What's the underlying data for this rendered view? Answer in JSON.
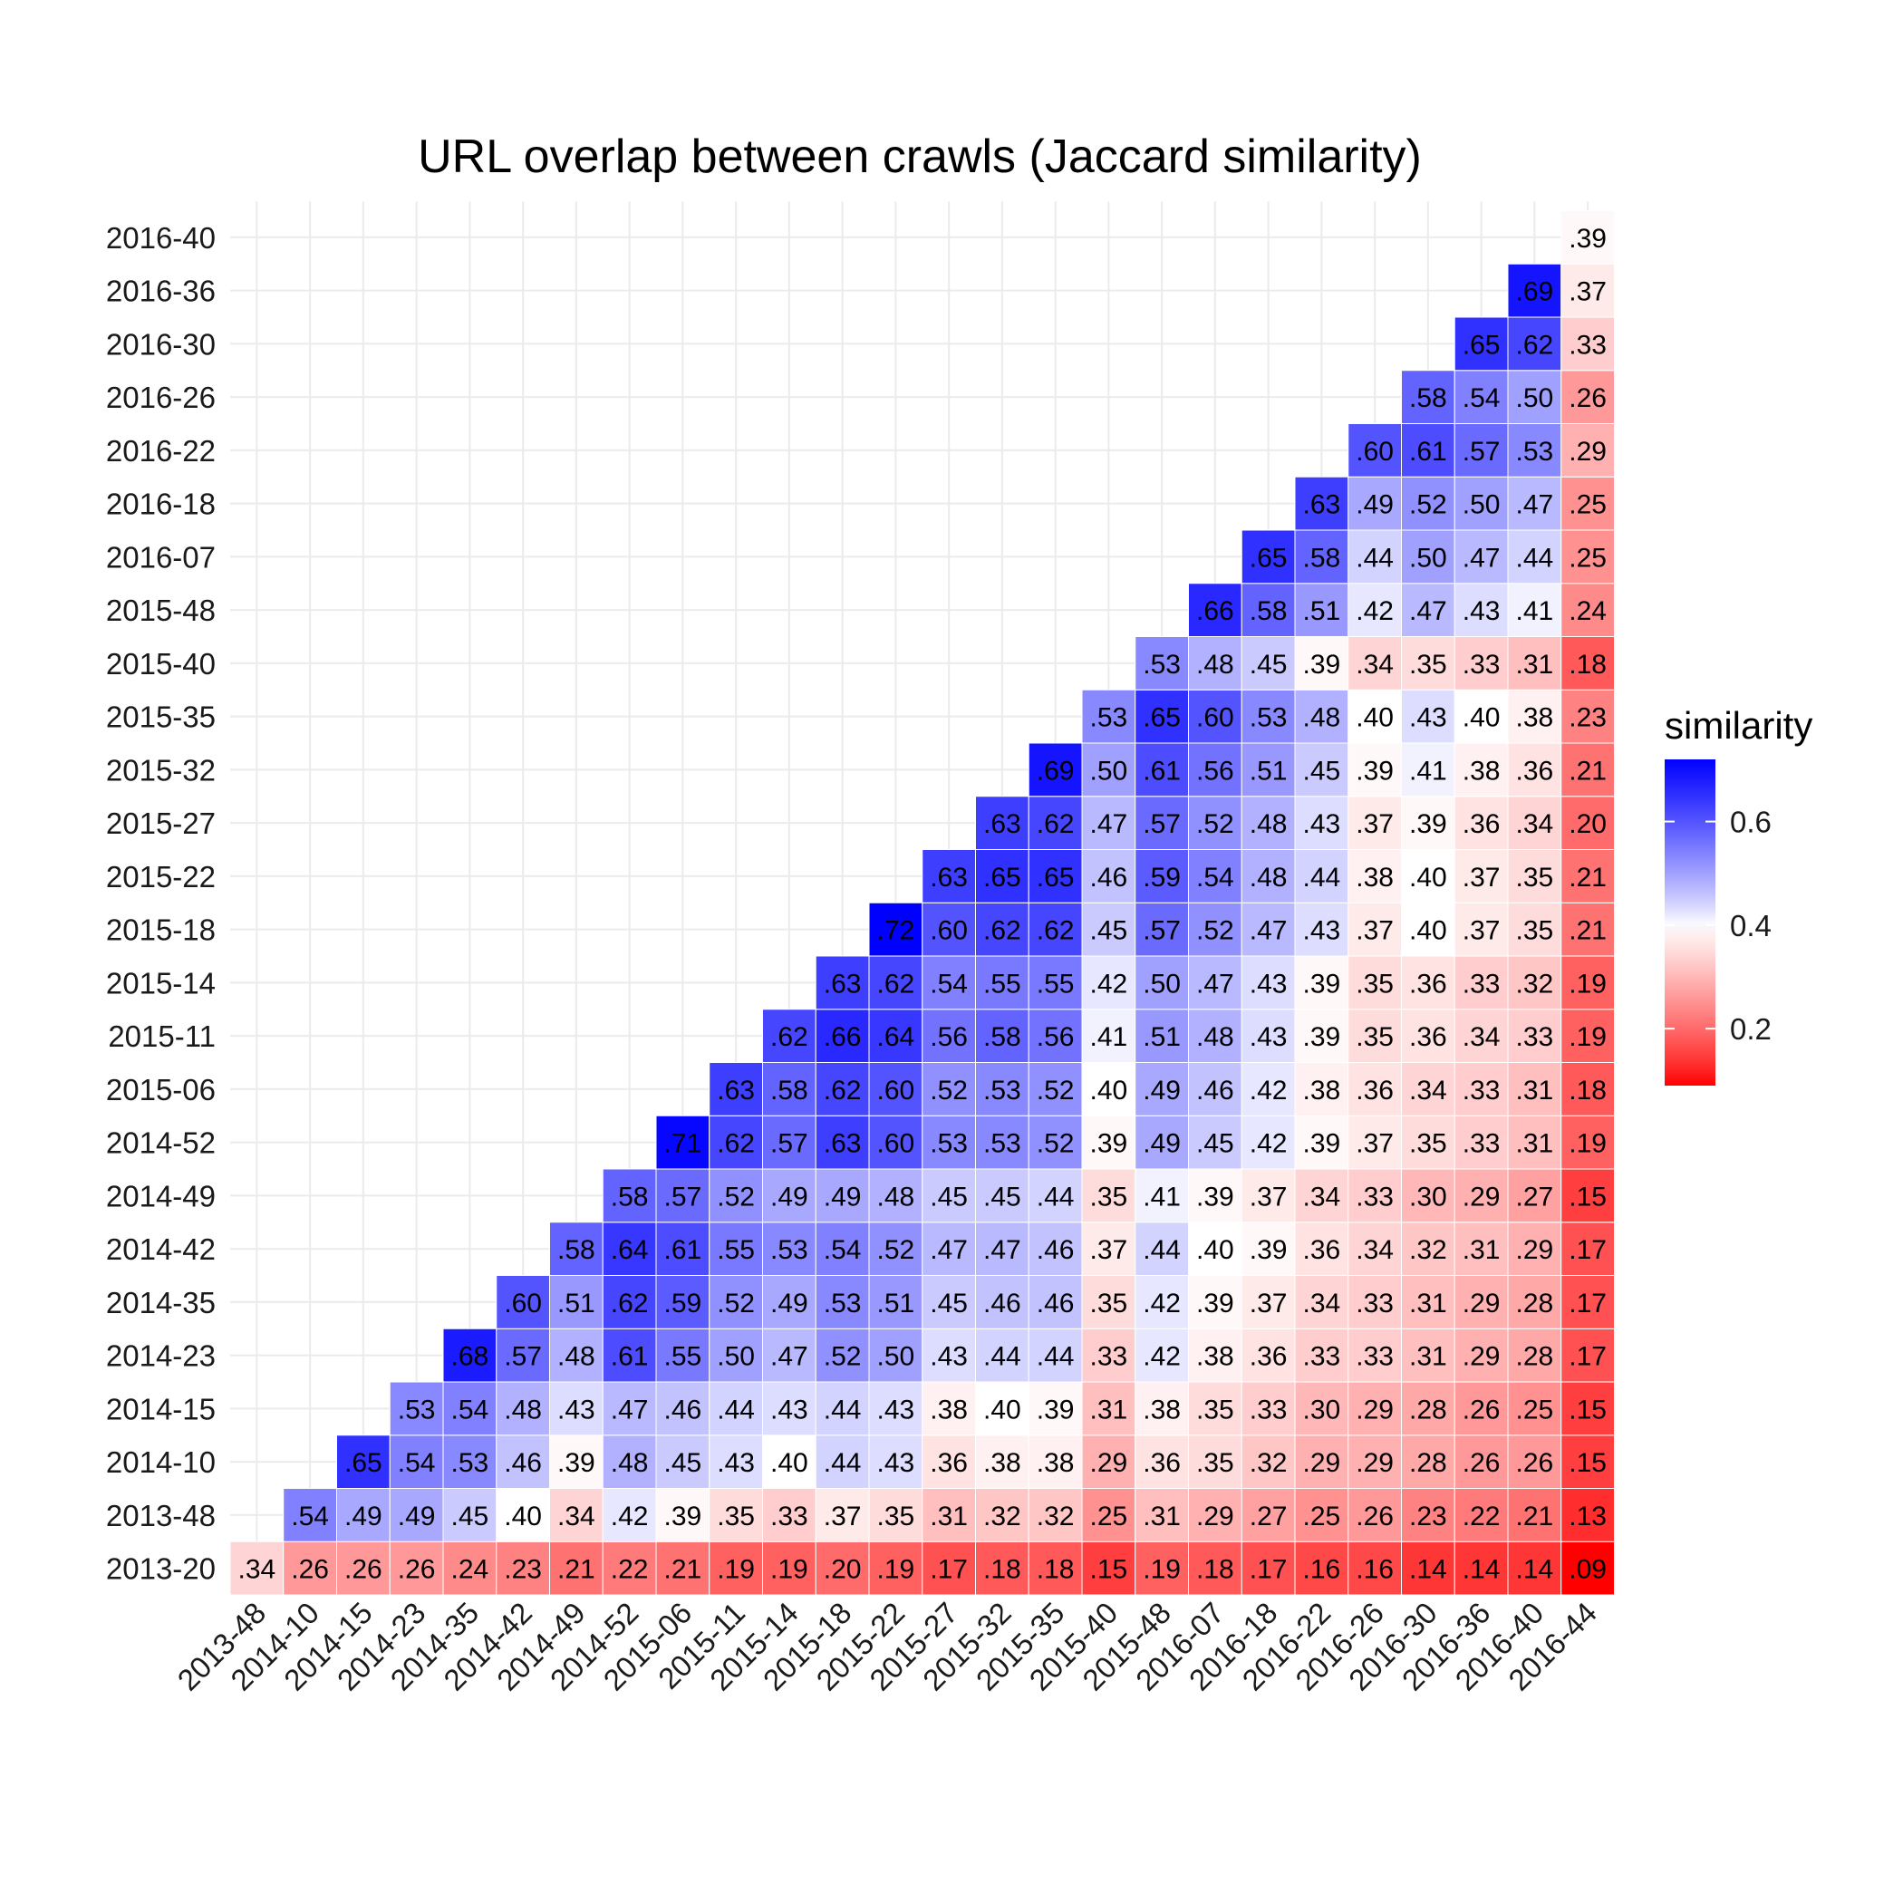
{
  "chart_data": {
    "type": "heatmap",
    "title": "URL overlap between crawls (Jaccard similarity)",
    "xlabel": "",
    "ylabel": "",
    "x_categories": [
      "2013-48",
      "2014-10",
      "2014-15",
      "2014-23",
      "2014-35",
      "2014-42",
      "2014-49",
      "2014-52",
      "2015-06",
      "2015-11",
      "2015-14",
      "2015-18",
      "2015-22",
      "2015-27",
      "2015-32",
      "2015-35",
      "2015-40",
      "2015-48",
      "2016-07",
      "2016-18",
      "2016-22",
      "2016-26",
      "2016-30",
      "2016-36",
      "2016-40",
      "2016-44"
    ],
    "y_categories": [
      "2013-20",
      "2013-48",
      "2014-10",
      "2014-15",
      "2014-23",
      "2014-35",
      "2014-42",
      "2014-49",
      "2014-52",
      "2015-06",
      "2015-11",
      "2015-14",
      "2015-18",
      "2015-22",
      "2015-27",
      "2015-32",
      "2015-35",
      "2015-40",
      "2015-48",
      "2016-07",
      "2016-18",
      "2016-22",
      "2016-26",
      "2016-30",
      "2016-36",
      "2016-40"
    ],
    "rows": [
      [
        0.34,
        0.26,
        0.26,
        0.26,
        0.24,
        0.23,
        0.21,
        0.22,
        0.21,
        0.19,
        0.19,
        0.2,
        0.19,
        0.17,
        0.18,
        0.18,
        0.15,
        0.19,
        0.18,
        0.17,
        0.16,
        0.16,
        0.14,
        0.14,
        0.14,
        0.09
      ],
      [
        0.54,
        0.49,
        0.49,
        0.45,
        0.4,
        0.34,
        0.42,
        0.39,
        0.35,
        0.33,
        0.37,
        0.35,
        0.31,
        0.32,
        0.32,
        0.25,
        0.31,
        0.29,
        0.27,
        0.25,
        0.26,
        0.23,
        0.22,
        0.21,
        0.13
      ],
      [
        0.65,
        0.54,
        0.53,
        0.46,
        0.39,
        0.48,
        0.45,
        0.43,
        0.4,
        0.44,
        0.43,
        0.36,
        0.38,
        0.38,
        0.29,
        0.36,
        0.35,
        0.32,
        0.29,
        0.29,
        0.28,
        0.26,
        0.26,
        0.15
      ],
      [
        0.53,
        0.54,
        0.48,
        0.43,
        0.47,
        0.46,
        0.44,
        0.43,
        0.44,
        0.43,
        0.38,
        0.4,
        0.39,
        0.31,
        0.38,
        0.35,
        0.33,
        0.3,
        0.29,
        0.28,
        0.26,
        0.25,
        0.15
      ],
      [
        0.68,
        0.57,
        0.48,
        0.61,
        0.55,
        0.5,
        0.47,
        0.52,
        0.5,
        0.43,
        0.44,
        0.44,
        0.33,
        0.42,
        0.38,
        0.36,
        0.33,
        0.33,
        0.31,
        0.29,
        0.28,
        0.17
      ],
      [
        0.6,
        0.51,
        0.62,
        0.59,
        0.52,
        0.49,
        0.53,
        0.51,
        0.45,
        0.46,
        0.46,
        0.35,
        0.42,
        0.39,
        0.37,
        0.34,
        0.33,
        0.31,
        0.29,
        0.28,
        0.17
      ],
      [
        0.58,
        0.64,
        0.61,
        0.55,
        0.53,
        0.54,
        0.52,
        0.47,
        0.47,
        0.46,
        0.37,
        0.44,
        0.4,
        0.39,
        0.36,
        0.34,
        0.32,
        0.31,
        0.29,
        0.17
      ],
      [
        0.58,
        0.57,
        0.52,
        0.49,
        0.49,
        0.48,
        0.45,
        0.45,
        0.44,
        0.35,
        0.41,
        0.39,
        0.37,
        0.34,
        0.33,
        0.3,
        0.29,
        0.27,
        0.15
      ],
      [
        0.71,
        0.62,
        0.57,
        0.63,
        0.6,
        0.53,
        0.53,
        0.52,
        0.39,
        0.49,
        0.45,
        0.42,
        0.39,
        0.37,
        0.35,
        0.33,
        0.31,
        0.19
      ],
      [
        0.63,
        0.58,
        0.62,
        0.6,
        0.52,
        0.53,
        0.52,
        0.4,
        0.49,
        0.46,
        0.42,
        0.38,
        0.36,
        0.34,
        0.33,
        0.31,
        0.18
      ],
      [
        0.62,
        0.66,
        0.64,
        0.56,
        0.58,
        0.56,
        0.41,
        0.51,
        0.48,
        0.43,
        0.39,
        0.35,
        0.36,
        0.34,
        0.33,
        0.19
      ],
      [
        0.63,
        0.62,
        0.54,
        0.55,
        0.55,
        0.42,
        0.5,
        0.47,
        0.43,
        0.39,
        0.35,
        0.36,
        0.33,
        0.32,
        0.19
      ],
      [
        0.72,
        0.6,
        0.62,
        0.62,
        0.45,
        0.57,
        0.52,
        0.47,
        0.43,
        0.37,
        0.4,
        0.37,
        0.35,
        0.21
      ],
      [
        0.63,
        0.65,
        0.65,
        0.46,
        0.59,
        0.54,
        0.48,
        0.44,
        0.38,
        0.4,
        0.37,
        0.35,
        0.21
      ],
      [
        0.63,
        0.62,
        0.47,
        0.57,
        0.52,
        0.48,
        0.43,
        0.37,
        0.39,
        0.36,
        0.34,
        0.2
      ],
      [
        0.69,
        0.5,
        0.61,
        0.56,
        0.51,
        0.45,
        0.39,
        0.41,
        0.38,
        0.36,
        0.21
      ],
      [
        0.53,
        0.65,
        0.6,
        0.53,
        0.48,
        0.4,
        0.43,
        0.4,
        0.38,
        0.23
      ],
      [
        0.53,
        0.48,
        0.45,
        0.39,
        0.34,
        0.35,
        0.33,
        0.31,
        0.18
      ],
      [
        0.66,
        0.58,
        0.51,
        0.42,
        0.47,
        0.43,
        0.41,
        0.24
      ],
      [
        0.65,
        0.58,
        0.44,
        0.5,
        0.47,
        0.44,
        0.25
      ],
      [
        0.63,
        0.49,
        0.52,
        0.5,
        0.47,
        0.25
      ],
      [
        0.6,
        0.61,
        0.57,
        0.53,
        0.29
      ],
      [
        0.58,
        0.54,
        0.5,
        0.26
      ],
      [
        0.65,
        0.62,
        0.33
      ],
      [
        0.69,
        0.37
      ],
      [
        0.39
      ]
    ],
    "legend": {
      "title": "similarity",
      "ticks": [
        0.2,
        0.4,
        0.6
      ],
      "tick_labels": [
        "0.2",
        "0.4",
        "0.6"
      ],
      "placement": "right",
      "range": [
        0.09,
        0.72
      ],
      "midpoint": 0.4
    },
    "colors": {
      "low": "#ff0000",
      "mid": "#ffffff",
      "high": "#0000ff",
      "grid": "#ebebeb"
    },
    "grid": true
  }
}
